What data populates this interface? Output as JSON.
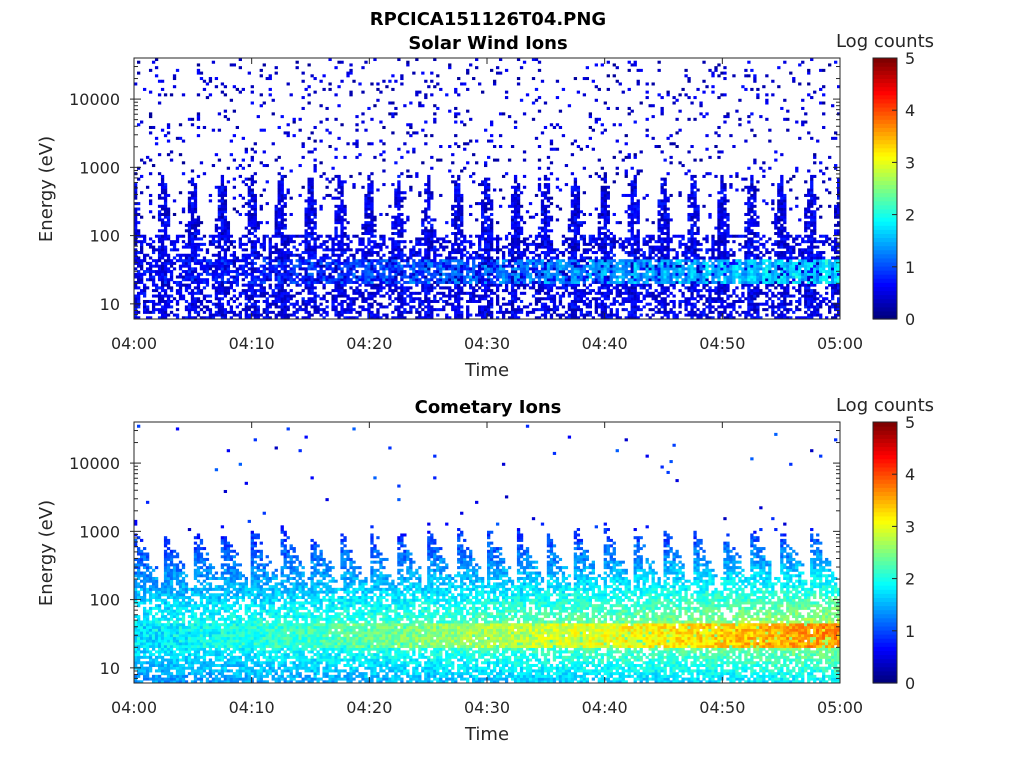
{
  "figure_title": "RPCICA151126T04.PNG",
  "chart_data": [
    {
      "type": "heatmap",
      "title": "Solar Wind Ions",
      "xlabel": "Time",
      "ylabel": "Energy (eV)",
      "x_ticks": [
        "04:00",
        "04:10",
        "04:20",
        "04:30",
        "04:40",
        "04:50",
        "05:00"
      ],
      "xlim": [
        "04:00",
        "05:00"
      ],
      "y_scale": "log",
      "ylim": [
        6,
        40000
      ],
      "y_ticks": [
        10,
        100,
        1000,
        10000
      ],
      "y_tick_labels": [
        "10",
        "100",
        "1000",
        "10000"
      ],
      "colorbar": {
        "label": "Log counts",
        "range": [
          0,
          5
        ],
        "ticks": [
          "0",
          "1",
          "2",
          "3",
          "4",
          "5"
        ],
        "colormap": "jet"
      },
      "description_values": {
        "background_max_log_counts": 1.0,
        "band_energy_range_eV": [
          20,
          45
        ],
        "band_peak_log_counts": 1.8
      }
    },
    {
      "type": "heatmap",
      "title": "Cometary Ions",
      "xlabel": "Time",
      "ylabel": "Energy (eV)",
      "x_ticks": [
        "04:00",
        "04:10",
        "04:20",
        "04:30",
        "04:40",
        "04:50",
        "05:00"
      ],
      "xlim": [
        "04:00",
        "05:00"
      ],
      "y_scale": "log",
      "ylim": [
        6,
        40000
      ],
      "y_ticks": [
        10,
        100,
        1000,
        10000
      ],
      "y_tick_labels": [
        "10",
        "100",
        "1000",
        "10000"
      ],
      "colorbar": {
        "label": "Log counts",
        "range": [
          0,
          5
        ],
        "ticks": [
          "0",
          "1",
          "2",
          "3",
          "4",
          "5"
        ],
        "colormap": "jet"
      },
      "description_values": {
        "oscillation_period_min": 2.5,
        "peak_energy_eV": [
          20,
          45
        ],
        "peak_log_counts_late": 3.8
      }
    }
  ]
}
